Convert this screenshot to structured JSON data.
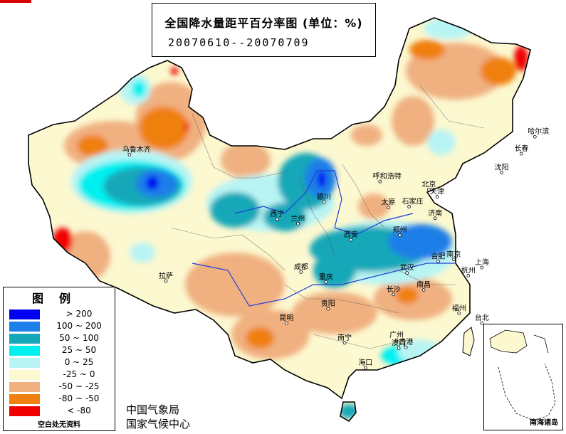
{
  "title": {
    "main": "全国降水量距平百分率图 (单位：%)",
    "period": "20070610--20070709"
  },
  "legend": {
    "title": "图例",
    "items": [
      {
        "label": "> 200",
        "color": "#0000f0"
      },
      {
        "label": "100 ~ 200",
        "color": "#1e7fe8"
      },
      {
        "label": "50 ~ 100",
        "color": "#14a8b8"
      },
      {
        "label": "25 ~ 50",
        "color": "#00f0f0"
      },
      {
        "label": "0 ~ 25",
        "color": "#b8f4f4"
      },
      {
        "label": "-25 ~ 0",
        "color": "#fcf8d0"
      },
      {
        "label": "-50 ~ -25",
        "color": "#f0b080"
      },
      {
        "label": "-80 ~ -50",
        "color": "#f08010"
      },
      {
        "label": "< -80",
        "color": "#f00000"
      }
    ],
    "note": "空白处无资料"
  },
  "org": {
    "cma": "中国气象局",
    "ncc": "国家气候中心"
  },
  "inset_label": "南海诸岛",
  "cities": [
    {
      "name": "乌鲁木齐",
      "lon": 87.6,
      "lat": 43.8
    },
    {
      "name": "拉萨",
      "lon": 91.1,
      "lat": 29.7
    },
    {
      "name": "西宁",
      "lon": 101.8,
      "lat": 36.6
    },
    {
      "name": "兰州",
      "lon": 103.8,
      "lat": 36.1
    },
    {
      "name": "银川",
      "lon": 106.3,
      "lat": 38.5
    },
    {
      "name": "呼和浩特",
      "lon": 111.7,
      "lat": 40.8
    },
    {
      "name": "北京",
      "lon": 116.4,
      "lat": 39.9
    },
    {
      "name": "天津",
      "lon": 117.2,
      "lat": 39.1
    },
    {
      "name": "太原",
      "lon": 112.5,
      "lat": 37.9
    },
    {
      "name": "石家庄",
      "lon": 114.5,
      "lat": 38.0
    },
    {
      "name": "济南",
      "lon": 117.0,
      "lat": 36.7
    },
    {
      "name": "西安",
      "lon": 108.9,
      "lat": 34.3
    },
    {
      "name": "郑州",
      "lon": 113.6,
      "lat": 34.8
    },
    {
      "name": "合肥",
      "lon": 117.3,
      "lat": 31.9
    },
    {
      "name": "南京",
      "lon": 118.8,
      "lat": 32.1
    },
    {
      "name": "上海",
      "lon": 121.5,
      "lat": 31.2
    },
    {
      "name": "杭州",
      "lon": 120.2,
      "lat": 30.3
    },
    {
      "name": "武汉",
      "lon": 114.3,
      "lat": 30.6
    },
    {
      "name": "成都",
      "lon": 104.1,
      "lat": 30.7
    },
    {
      "name": "重庆",
      "lon": 106.5,
      "lat": 29.6
    },
    {
      "name": "长沙",
      "lon": 113.0,
      "lat": 28.2
    },
    {
      "name": "南昌",
      "lon": 115.9,
      "lat": 28.7
    },
    {
      "name": "福州",
      "lon": 119.3,
      "lat": 26.1
    },
    {
      "name": "台北",
      "lon": 121.5,
      "lat": 25.0
    },
    {
      "name": "贵阳",
      "lon": 106.7,
      "lat": 26.6
    },
    {
      "name": "昆明",
      "lon": 102.7,
      "lat": 25.0
    },
    {
      "name": "南宁",
      "lon": 108.3,
      "lat": 22.8
    },
    {
      "name": "广州",
      "lon": 113.3,
      "lat": 23.1
    },
    {
      "name": "香港",
      "lon": 114.2,
      "lat": 22.3
    },
    {
      "name": "澳门",
      "lon": 113.5,
      "lat": 22.2
    },
    {
      "name": "海口",
      "lon": 110.3,
      "lat": 20.0
    },
    {
      "name": "沈阳",
      "lon": 123.4,
      "lat": 41.8
    },
    {
      "name": "长春",
      "lon": 125.3,
      "lat": 43.9
    },
    {
      "name": "哈尔滨",
      "lon": 126.6,
      "lat": 45.8
    }
  ]
}
